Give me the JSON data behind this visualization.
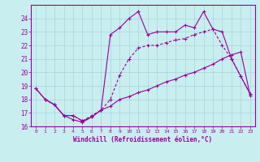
{
  "xlabel": "Windchill (Refroidissement éolien,°C)",
  "bg_color": "#c8eef0",
  "grid_color": "#aad4d8",
  "line_color": "#990099",
  "xlim_min": -0.5,
  "xlim_max": 23.5,
  "ylim_min": 16.0,
  "ylim_max": 25.0,
  "yticks": [
    16,
    17,
    18,
    19,
    20,
    21,
    22,
    23,
    24
  ],
  "xticks": [
    0,
    1,
    2,
    3,
    4,
    5,
    6,
    7,
    8,
    9,
    10,
    11,
    12,
    13,
    14,
    15,
    16,
    17,
    18,
    19,
    20,
    21,
    22,
    23
  ],
  "line1_x": [
    0,
    1,
    2,
    3,
    4,
    5,
    6,
    7,
    8,
    9,
    10,
    11,
    12,
    13,
    14,
    15,
    16,
    17,
    18,
    19,
    20,
    21,
    22,
    23
  ],
  "line1_y": [
    18.8,
    18.0,
    17.6,
    16.8,
    16.5,
    16.3,
    16.7,
    17.2,
    17.5,
    18.0,
    18.2,
    18.5,
    18.7,
    19.0,
    19.3,
    19.5,
    19.8,
    20.0,
    20.3,
    20.6,
    21.0,
    21.3,
    21.5,
    18.3
  ],
  "line2_x": [
    1,
    2,
    3,
    4,
    5,
    6,
    7,
    8,
    9,
    10,
    11,
    12,
    13,
    14,
    15,
    16,
    17,
    18,
    19,
    20,
    21,
    22,
    23
  ],
  "line2_y": [
    18.0,
    17.6,
    16.8,
    16.8,
    16.4,
    16.8,
    17.2,
    18.0,
    19.8,
    21.0,
    21.8,
    22.0,
    22.0,
    22.2,
    22.4,
    22.5,
    22.8,
    23.0,
    23.2,
    22.0,
    21.0,
    19.7,
    18.4
  ],
  "line3_x": [
    0,
    1,
    2,
    3,
    4,
    5,
    6,
    7,
    8,
    9,
    10,
    11,
    12,
    13,
    14,
    15,
    16,
    17,
    18,
    19,
    20,
    21,
    22,
    23
  ],
  "line3_y": [
    18.8,
    18.0,
    17.6,
    16.8,
    16.8,
    16.4,
    16.7,
    17.2,
    22.8,
    23.3,
    24.0,
    24.5,
    22.8,
    23.0,
    23.0,
    23.0,
    23.5,
    23.3,
    24.5,
    23.2,
    23.0,
    21.0,
    19.7,
    18.4
  ]
}
